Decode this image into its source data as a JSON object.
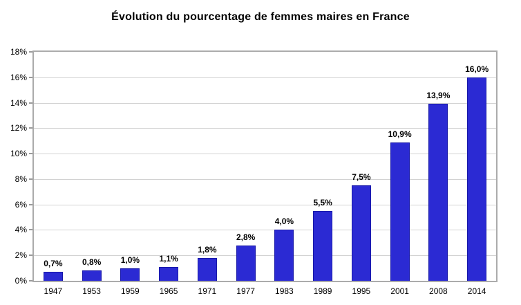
{
  "title": "Évolution du pourcentage de femmes maires en France",
  "chart_data": {
    "type": "bar",
    "title": "Évolution du pourcentage de femmes maires en France",
    "categories": [
      "1947",
      "1953",
      "1959",
      "1965",
      "1971",
      "1977",
      "1983",
      "1989",
      "1995",
      "2001",
      "2008",
      "2014"
    ],
    "values": [
      0.7,
      0.8,
      1.0,
      1.1,
      1.8,
      2.8,
      4.0,
      5.5,
      7.5,
      10.9,
      13.9,
      16.0
    ],
    "value_labels": [
      "0,7%",
      "0,8%",
      "1,0%",
      "1,1%",
      "1,8%",
      "2,8%",
      "4,0%",
      "5,5%",
      "7,5%",
      "10,9%",
      "13,9%",
      "16,0%"
    ],
    "xlabel": "",
    "ylabel": "",
    "ylim": [
      0,
      18
    ],
    "y_tick_step": 2,
    "y_tick_labels": [
      "0%",
      "2%",
      "4%",
      "6%",
      "8%",
      "10%",
      "12%",
      "14%",
      "16%",
      "18%"
    ],
    "grid": "horizontal",
    "legend_position": "none",
    "colors": {
      "bar_fill": "#2b2ad3",
      "bar_border": "#1717a8",
      "gridline": "#d2d2d2",
      "plot_border": "#ababab",
      "tick": "#9a9a9a",
      "text": "#000000",
      "background": "#ffffff"
    }
  }
}
